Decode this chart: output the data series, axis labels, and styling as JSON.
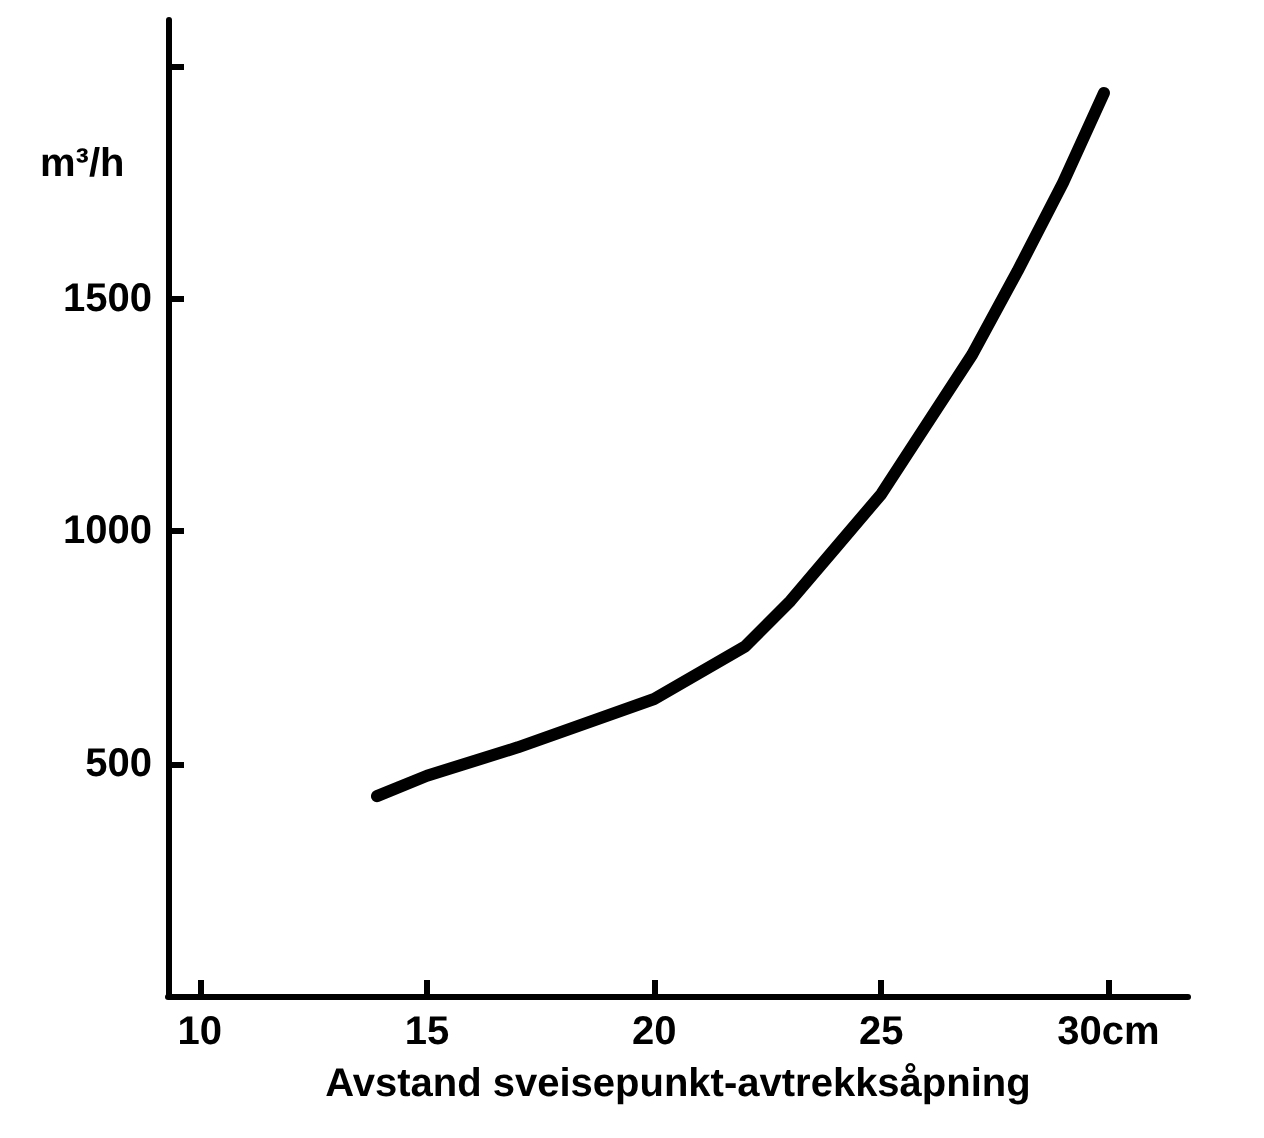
{
  "chart_data": {
    "type": "line",
    "ylabel": "m³/h",
    "xlabel": "Avstand sveisepunkt-avtrekksåpning",
    "color": "#000000",
    "x": [
      13.9,
      15,
      17,
      20,
      22,
      23,
      24,
      25,
      26,
      27,
      28,
      29,
      29.9
    ],
    "values": [
      430,
      474,
      535,
      639,
      752,
      850,
      965,
      1080,
      1230,
      1380,
      1560,
      1750,
      1943
    ],
    "xlim": [
      9.3,
      31.75
    ],
    "xticks": [
      10,
      15,
      20,
      25,
      {
        "value": 30,
        "label": "30cm"
      }
    ],
    "ylim": [
      0,
      2100
    ],
    "yticks": [
      500,
      1000,
      1500,
      {
        "value": 2000,
        "label": null
      }
    ],
    "grid": false,
    "marker": "none",
    "line_style": "solid"
  }
}
